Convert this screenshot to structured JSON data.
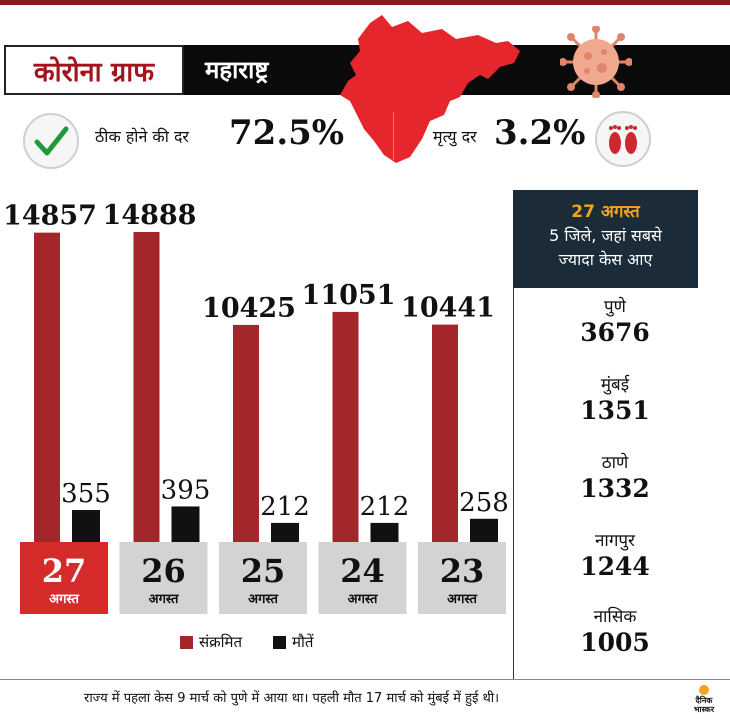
{
  "header": {
    "title": "कोरोना ग्राफ",
    "state": "महाराष्ट्र"
  },
  "rates": {
    "recovery_label": "ठीक होने की दर",
    "recovery_value": "72.5%",
    "death_label": "मृत्यु दर",
    "death_value": "3.2%"
  },
  "colors": {
    "cases": "#a3262b",
    "deaths": "#111111",
    "highlight": "#d52b2b",
    "inactive_date": "#d3d3d3"
  },
  "chart_data": {
    "type": "bar",
    "categories": [
      {
        "day": "27",
        "month": "अगस्त"
      },
      {
        "day": "26",
        "month": "अगस्त"
      },
      {
        "day": "25",
        "month": "अगस्त"
      },
      {
        "day": "24",
        "month": "अगस्त"
      },
      {
        "day": "23",
        "month": "अगस्त"
      }
    ],
    "series": [
      {
        "name": "संक्रमित",
        "values": [
          14857,
          14888,
          10425,
          11051,
          10441
        ]
      },
      {
        "name": "मौतें",
        "values": [
          355,
          395,
          212,
          212,
          258
        ]
      }
    ],
    "highlight_index": 0,
    "legend_position": "bottom"
  },
  "panel": {
    "date": "27 अगस्त",
    "subtitle_line1": "5 जिले, जहां सबसे",
    "subtitle_line2": "ज्यादा केस आए",
    "districts": [
      {
        "name": "पुणे",
        "value": "3676"
      },
      {
        "name": "मुंबई",
        "value": "1351"
      },
      {
        "name": "ठाणे",
        "value": "1332"
      },
      {
        "name": "नागपुर",
        "value": "1244"
      },
      {
        "name": "नासिक",
        "value": "1005"
      }
    ]
  },
  "footer": {
    "note": "राज्य में पहला केस 9 मार्च को पुणे में आया था। पहली मौत 17 मार्च को मुंबई में हुई थी।",
    "logo_text": "दैनिक भास्कर"
  },
  "icons": {
    "map": "maharashtra-map-icon",
    "virus": "coronavirus-icon",
    "check": "check-icon",
    "feet": "footprints-icon"
  }
}
